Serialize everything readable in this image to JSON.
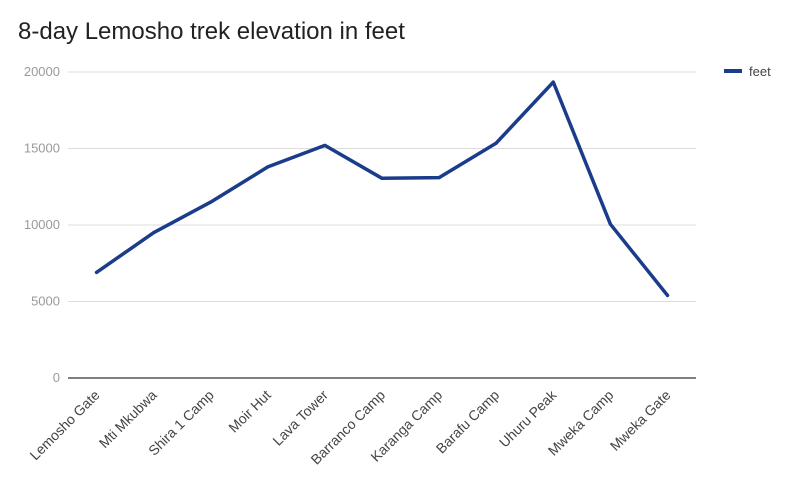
{
  "chart_data": {
    "type": "line",
    "title": "8-day Lemosho trek elevation in feet",
    "categories": [
      "Lemosho Gate",
      "Mti Mkubwa",
      "Shira 1 Camp",
      "Moir Hut",
      "Lava Tower",
      "Barranco Camp",
      "Karanga Camp",
      "Barafu Camp",
      "Uhuru Peak",
      "Mweka Camp",
      "Mweka Gate"
    ],
    "series": [
      {
        "name": "feet",
        "values": [
          6900,
          9500,
          11500,
          13800,
          15200,
          13050,
          13100,
          15350,
          19340,
          10050,
          5400
        ],
        "color": "#1a3c8a"
      }
    ],
    "yticks": [
      "0",
      "5000",
      "10000",
      "15000",
      "20000"
    ],
    "ylim": [
      0,
      20000
    ],
    "grid": true,
    "legend_position": "right"
  }
}
